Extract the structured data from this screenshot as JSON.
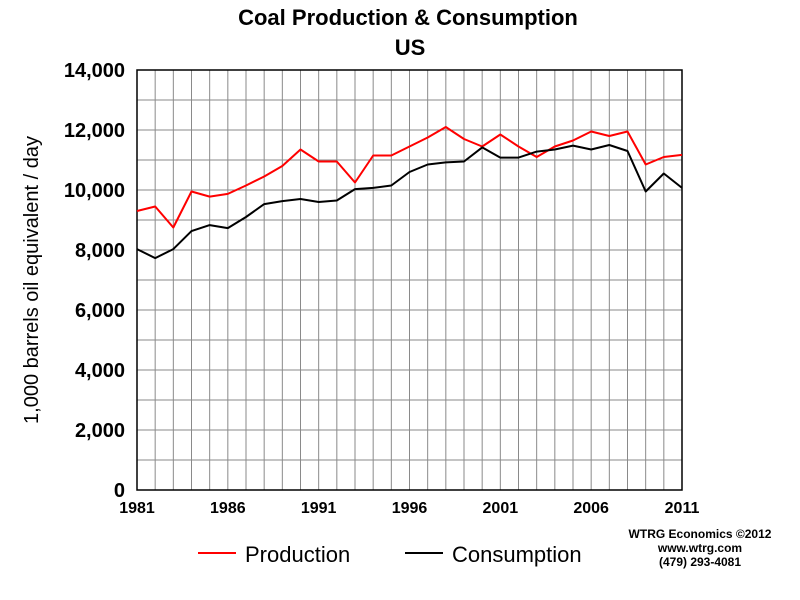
{
  "chart_data": {
    "type": "line",
    "title": "Coal Production & Consumption",
    "subtitle": "US",
    "ylabel": "1,000 barrels oil equivalent / day",
    "xlabel": "",
    "x": [
      1981,
      1982,
      1983,
      1984,
      1985,
      1986,
      1987,
      1988,
      1989,
      1990,
      1991,
      1992,
      1993,
      1994,
      1995,
      1996,
      1997,
      1998,
      1999,
      2000,
      2001,
      2002,
      2003,
      2004,
      2005,
      2006,
      2007,
      2008,
      2009,
      2010,
      2011
    ],
    "xlim": [
      1981,
      2011
    ],
    "ylim": [
      0,
      14000
    ],
    "x_ticks": [
      "1981",
      "1986",
      "1991",
      "1996",
      "2001",
      "2006",
      "2011"
    ],
    "y_ticks": [
      "0",
      "2,000",
      "4,000",
      "6,000",
      "8,000",
      "10,000",
      "12,000",
      "14,000"
    ],
    "grid": true,
    "legend_position": "bottom",
    "series": [
      {
        "name": "Production",
        "color": "#ff0000",
        "values": [
          9300,
          9450,
          8750,
          9950,
          9780,
          9870,
          10150,
          10450,
          10800,
          11350,
          10950,
          10950,
          10250,
          11150,
          11150,
          11450,
          11750,
          12100,
          11700,
          11450,
          11850,
          11450,
          11100,
          11450,
          11650,
          11950,
          11800,
          11950,
          10850,
          11100,
          11170
        ]
      },
      {
        "name": "Consumption",
        "color": "#000000",
        "values": [
          8030,
          7730,
          8030,
          8630,
          8830,
          8730,
          9100,
          9530,
          9630,
          9700,
          9600,
          9650,
          10030,
          10070,
          10150,
          10600,
          10850,
          10920,
          10950,
          11420,
          11080,
          11080,
          11280,
          11350,
          11480,
          11350,
          11500,
          11300,
          9950,
          10550,
          10070
        ]
      }
    ]
  },
  "credits": {
    "line1": "WTRG Economics  ©2012",
    "line2": "www.wtrg.com",
    "line3": "(479) 293-4081"
  }
}
